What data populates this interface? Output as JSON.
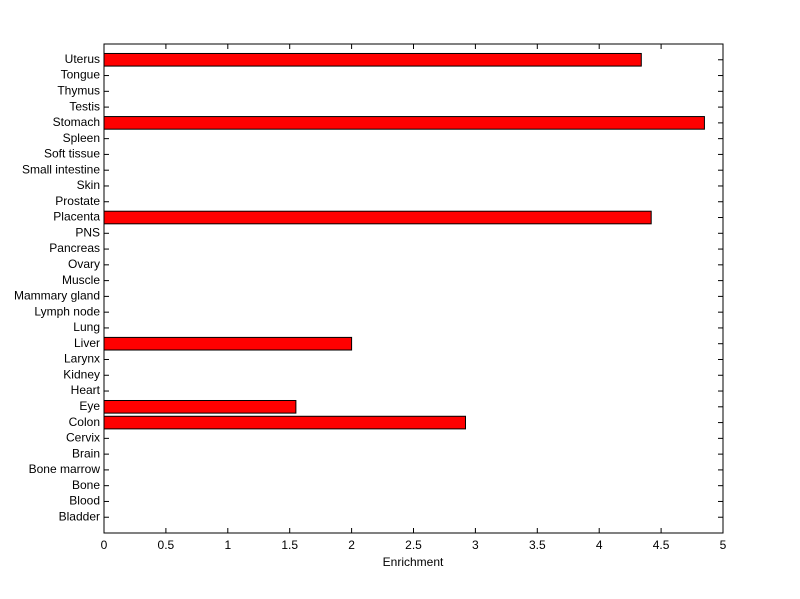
{
  "chart_data": {
    "type": "barh",
    "xlabel": "Enrichment",
    "categories": [
      "Bladder",
      "Blood",
      "Bone",
      "Bone marrow",
      "Brain",
      "Cervix",
      "Colon",
      "Eye",
      "Heart",
      "Kidney",
      "Larynx",
      "Liver",
      "Lung",
      "Lymph node",
      "Mammary gland",
      "Muscle",
      "Ovary",
      "Pancreas",
      "PNS",
      "Placenta",
      "Prostate",
      "Skin",
      "Small intestine",
      "Soft tissue",
      "Spleen",
      "Stomach",
      "Testis",
      "Thymus",
      "Tongue",
      "Uterus"
    ],
    "values": [
      0,
      0,
      0,
      0,
      0,
      0,
      2.92,
      1.55,
      0,
      0,
      0,
      2.0,
      0,
      0,
      0,
      0,
      0,
      0,
      0,
      4.42,
      0,
      0,
      0,
      0,
      0,
      4.85,
      0,
      0,
      0,
      4.34
    ],
    "color": "#ff0000",
    "xlim": [
      0,
      5
    ],
    "xticks": [
      0,
      0.5,
      1,
      1.5,
      2,
      2.5,
      3,
      3.5,
      4,
      4.5,
      5
    ]
  }
}
